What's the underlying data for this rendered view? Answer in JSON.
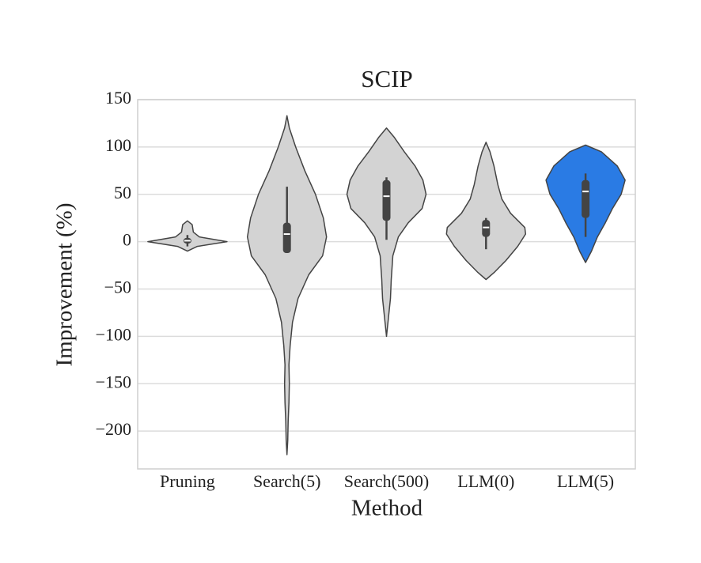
{
  "chart_data": {
    "type": "violin",
    "title": "SCIP",
    "x_label": "Method",
    "y_label": "Improvement (%)",
    "categories": [
      "Pruning",
      "Search(5)",
      "Search(500)",
      "LLM(0)",
      "LLM(5)"
    ],
    "colors": [
      "#d3d3d3",
      "#d3d3d3",
      "#d3d3d3",
      "#d3d3d3",
      "#2a7be4"
    ],
    "ylim": [
      -240,
      150
    ],
    "yticks": [
      {
        "value": -200,
        "label": "−200"
      },
      {
        "value": -150,
        "label": "−150"
      },
      {
        "value": -100,
        "label": "−100"
      },
      {
        "value": -50,
        "label": "−50"
      },
      0,
      50,
      100,
      150
    ],
    "grid": true,
    "violins": [
      {
        "profile": [
          [
            -10,
            0
          ],
          [
            -5,
            0.25
          ],
          [
            0,
            1.0
          ],
          [
            5,
            0.3
          ],
          [
            10,
            0.15
          ],
          [
            18,
            0.12
          ],
          [
            22,
            0
          ]
        ],
        "q1": -2,
        "q3": 4,
        "median": 1,
        "whisker_low": -5,
        "whisker_high": 7
      },
      {
        "profile": [
          [
            -225,
            0
          ],
          [
            -210,
            0.02
          ],
          [
            -190,
            0.03
          ],
          [
            -170,
            0.05
          ],
          [
            -150,
            0.06
          ],
          [
            -130,
            0.05
          ],
          [
            -110,
            0.08
          ],
          [
            -85,
            0.14
          ],
          [
            -60,
            0.28
          ],
          [
            -35,
            0.55
          ],
          [
            -15,
            0.9
          ],
          [
            5,
            1.0
          ],
          [
            25,
            0.92
          ],
          [
            50,
            0.72
          ],
          [
            75,
            0.45
          ],
          [
            100,
            0.22
          ],
          [
            120,
            0.06
          ],
          [
            133,
            0
          ]
        ],
        "q1": -12,
        "q3": 20,
        "median": 8,
        "whisker_low": -12,
        "whisker_high": 58
      },
      {
        "profile": [
          [
            -100,
            0
          ],
          [
            -80,
            0.05
          ],
          [
            -60,
            0.1
          ],
          [
            -40,
            0.12
          ],
          [
            -15,
            0.16
          ],
          [
            5,
            0.3
          ],
          [
            20,
            0.55
          ],
          [
            35,
            0.9
          ],
          [
            50,
            1.0
          ],
          [
            65,
            0.92
          ],
          [
            80,
            0.72
          ],
          [
            95,
            0.45
          ],
          [
            110,
            0.2
          ],
          [
            120,
            0
          ]
        ],
        "q1": 22,
        "q3": 65,
        "median": 48,
        "whisker_low": 2,
        "whisker_high": 68
      },
      {
        "profile": [
          [
            -40,
            0
          ],
          [
            -32,
            0.22
          ],
          [
            -20,
            0.5
          ],
          [
            -5,
            0.8
          ],
          [
            8,
            1.0
          ],
          [
            15,
            0.98
          ],
          [
            30,
            0.62
          ],
          [
            45,
            0.4
          ],
          [
            60,
            0.3
          ],
          [
            80,
            0.2
          ],
          [
            95,
            0.1
          ],
          [
            105,
            0
          ]
        ],
        "q1": 5,
        "q3": 23,
        "median": 15,
        "whisker_low": -8,
        "whisker_high": 25
      },
      {
        "profile": [
          [
            -22,
            0
          ],
          [
            -10,
            0.15
          ],
          [
            5,
            0.3
          ],
          [
            20,
            0.5
          ],
          [
            35,
            0.68
          ],
          [
            50,
            0.9
          ],
          [
            65,
            1.0
          ],
          [
            80,
            0.8
          ],
          [
            95,
            0.4
          ],
          [
            102,
            0
          ]
        ],
        "q1": 25,
        "q3": 65,
        "median": 53,
        "whisker_low": 5,
        "whisker_high": 72
      }
    ]
  }
}
